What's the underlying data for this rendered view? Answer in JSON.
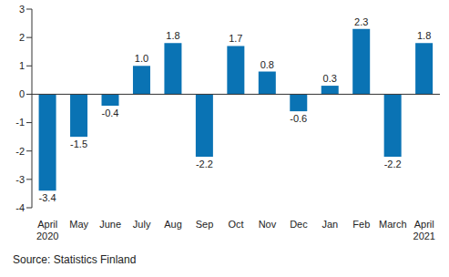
{
  "chart_data": {
    "type": "bar",
    "categories": [
      "April 2020",
      "May",
      "June",
      "July",
      "Aug",
      "Sep",
      "Oct",
      "Nov",
      "Dec",
      "Jan",
      "Feb",
      "March",
      "April 2021"
    ],
    "values": [
      -3.4,
      -1.5,
      -0.4,
      1.0,
      1.8,
      -2.2,
      1.7,
      0.8,
      -0.6,
      0.3,
      2.3,
      -2.2,
      1.8
    ],
    "value_labels": [
      "-3.4",
      "-1.5",
      "-0.4",
      "1.0",
      "1.8",
      "-2.2",
      "1.7",
      "0.8",
      "-0.6",
      "0.3",
      "2.3",
      "-2.2",
      "1.8"
    ],
    "color": "#0a73b4",
    "ylim": [
      -4,
      3
    ],
    "yticks": [
      -4,
      -3,
      -2,
      -1,
      0,
      1,
      2,
      3
    ],
    "grid": false,
    "data_labels": true,
    "caption": "Source: Statistics Finland"
  }
}
